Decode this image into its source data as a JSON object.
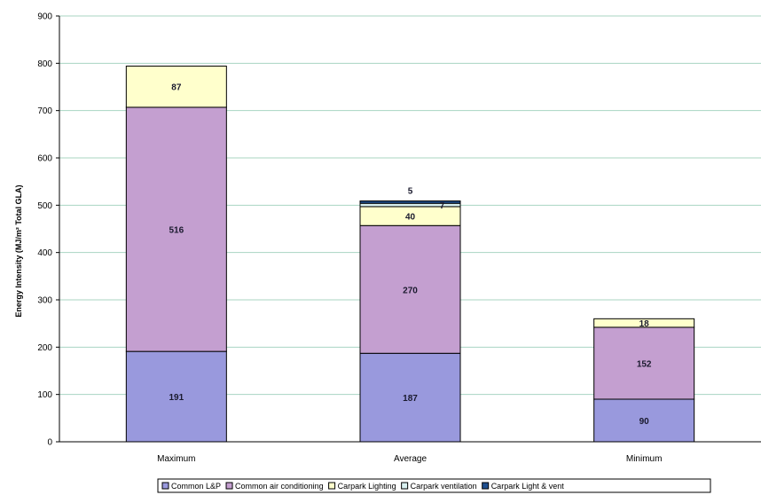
{
  "chart_data": {
    "type": "bar",
    "stacked": true,
    "categories": [
      "Maximum",
      "Average",
      "Minimum"
    ],
    "ylabel": "Energy Intensity (MJ/m² Total GLA)",
    "ylim": [
      0,
      900
    ],
    "yticks": [
      0,
      100,
      200,
      300,
      400,
      500,
      600,
      700,
      800,
      900
    ],
    "grid": true,
    "legend_position": "bottom",
    "series": [
      {
        "name": "Common L&P",
        "values": [
          191,
          187,
          90
        ],
        "labels": [
          "191",
          "187",
          "90"
        ],
        "color": "#9999dd"
      },
      {
        "name": "Common air conditioning",
        "values": [
          516,
          270,
          152
        ],
        "labels": [
          "516",
          "270",
          "152"
        ],
        "color": "#c49fd0"
      },
      {
        "name": "Carpark Lighting",
        "values": [
          87,
          40,
          18
        ],
        "labels": [
          "87",
          "40",
          "18"
        ],
        "color": "#ffffcc"
      },
      {
        "name": "Carpark ventilation",
        "values": [
          0,
          7,
          0
        ],
        "labels": [
          "",
          "7",
          ""
        ],
        "color": "#d8f0f0"
      },
      {
        "name": "Carpark Light & vent",
        "values": [
          0,
          5,
          0
        ],
        "labels": [
          "",
          "5",
          ""
        ],
        "color": "#1f4f8f"
      }
    ]
  }
}
